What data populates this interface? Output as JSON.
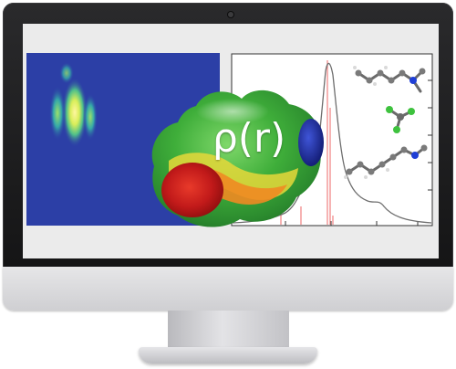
{
  "label": {
    "formula": "ρ(r)"
  },
  "colors": {
    "bezel": "#1e1e20",
    "screen": "#ebebeb",
    "density_background": "#2c3fa6",
    "spectrum_line": "#6e6e6e",
    "stick_lines": "#f08080",
    "surface_red": "#c21a1a",
    "surface_green": "#3fae3a",
    "surface_blue": "#1c2ea0"
  },
  "icons": [
    "monitor",
    "camera-dot",
    "molecule-structure"
  ]
}
